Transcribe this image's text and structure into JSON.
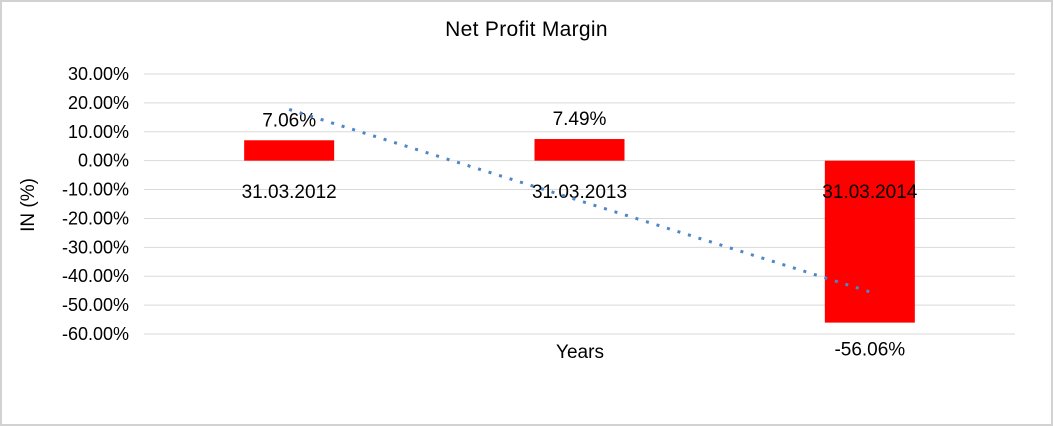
{
  "window": {
    "background": "#FFFFFF",
    "frame_border_color": "#D2D2D2"
  },
  "chart_data": {
    "type": "bar",
    "title": "Net Profit Margin",
    "xlabel": "Years",
    "ylabel": "IN (%)",
    "categories": [
      "31.03.2012",
      "31.03.2013",
      "31.03.2014"
    ],
    "series": [
      {
        "name": "Net Profit Margin",
        "values": [
          7.06,
          7.49,
          -56.06
        ]
      }
    ],
    "data_labels": [
      "7.06%",
      "7.49%",
      "-56.06%"
    ],
    "ylim": [
      -60,
      30
    ],
    "ytick_step": 10,
    "ytick_labels": [
      "30.00%",
      "20.00%",
      "10.00%",
      "0.00%",
      "-10.00%",
      "-20.00%",
      "-30.00%",
      "-40.00%",
      "-50.00%",
      "-60.00%"
    ],
    "grid": true,
    "legend": "none",
    "bar_color": "#FF0000",
    "gridline_color": "#D9D9D9",
    "text_color": "#000000",
    "trendline": {
      "type": "linear",
      "style": "dotted",
      "color": "#4E86C8",
      "start_value": 17.73,
      "end_value": -45.41
    }
  }
}
